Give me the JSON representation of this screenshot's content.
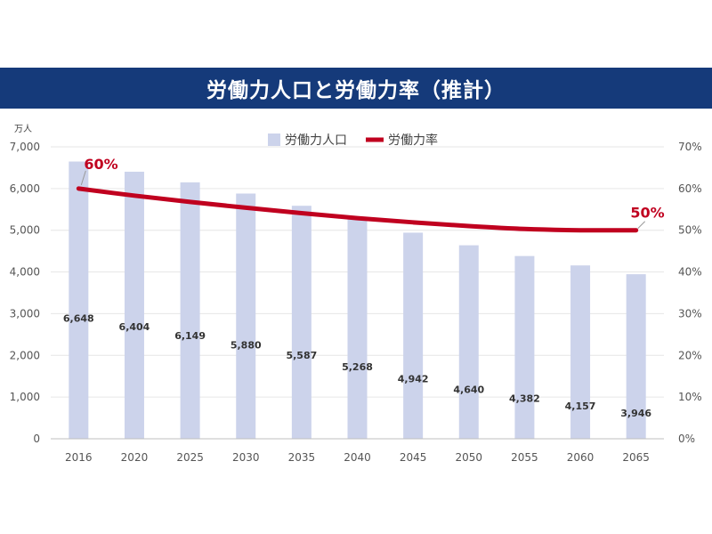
{
  "header": {
    "title": "労働力人口と労働力率（推計）"
  },
  "colors": {
    "title_bg": "#153a7a",
    "bar": "#ccd3eb",
    "line": "#c0001f",
    "grid": "#e6e6e6"
  },
  "chart_data": {
    "type": "bar",
    "categories": [
      "2016",
      "2020",
      "2025",
      "2030",
      "2035",
      "2040",
      "2045",
      "2050",
      "2055",
      "2060",
      "2065"
    ],
    "series": [
      {
        "name": "労働力人口",
        "type": "bar",
        "axis": "left",
        "values": [
          6648,
          6404,
          6149,
          5880,
          5587,
          5268,
          4942,
          4640,
          4382,
          4157,
          3946
        ],
        "labels": [
          "6,648",
          "6,404",
          "6,149",
          "5,880",
          "5,587",
          "5,268",
          "4,942",
          "4,640",
          "4,382",
          "4,157",
          "3,946"
        ]
      },
      {
        "name": "労働力率",
        "type": "line",
        "axis": "right",
        "values": [
          60,
          58.3,
          56.8,
          55.4,
          54.1,
          52.9,
          51.9,
          51,
          50.3,
          50,
          50
        ]
      }
    ],
    "y_left": {
      "unit": "万人",
      "ylim": [
        0,
        7000
      ],
      "ticks": [
        "0",
        "1,000",
        "2,000",
        "3,000",
        "4,000",
        "5,000",
        "6,000",
        "7,000"
      ]
    },
    "y_right": {
      "ylim": [
        0,
        70
      ],
      "ticks": [
        "0%",
        "10%",
        "20%",
        "30%",
        "40%",
        "50%",
        "60%",
        "70%"
      ]
    },
    "annotations": {
      "start": "60%",
      "end": "50%"
    },
    "grid": true,
    "legend": "top-center"
  }
}
